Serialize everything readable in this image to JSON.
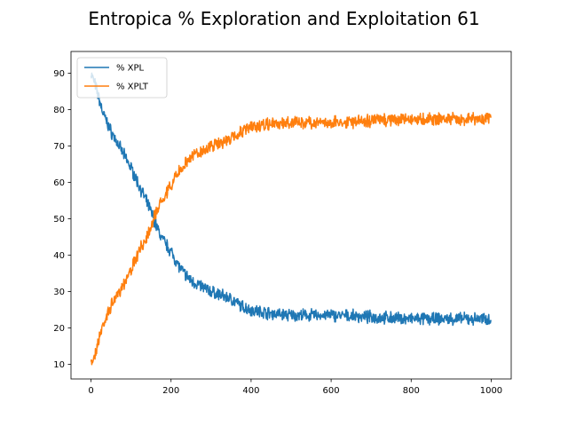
{
  "chart_data": {
    "type": "line",
    "title": "Entropica % Exploration and Exploitation 61",
    "xlabel": "",
    "ylabel": "",
    "xlim": [
      -50,
      1050
    ],
    "ylim": [
      6,
      96
    ],
    "xticks": [
      0,
      200,
      400,
      600,
      800,
      1000
    ],
    "yticks": [
      10,
      20,
      30,
      40,
      50,
      60,
      70,
      80,
      90
    ],
    "grid": false,
    "legend_position": "top-left",
    "series": [
      {
        "name": "% XPL",
        "color": "#1f77b4",
        "x": [
          0,
          10,
          20,
          30,
          50,
          75,
          100,
          125,
          150,
          160,
          175,
          200,
          225,
          250,
          300,
          350,
          375,
          400,
          450,
          500,
          600,
          700,
          800,
          900,
          1000
        ],
        "y": [
          90,
          87,
          83,
          79,
          74,
          69,
          64,
          58,
          52,
          49,
          45,
          41,
          36,
          33,
          30,
          28,
          26,
          25,
          24,
          23.5,
          23.5,
          23,
          22.5,
          22.5,
          22.5
        ]
      },
      {
        "name": "% XPLT",
        "color": "#ff7f0e",
        "x": [
          0,
          10,
          20,
          30,
          50,
          75,
          100,
          125,
          150,
          160,
          175,
          200,
          225,
          250,
          300,
          350,
          375,
          400,
          450,
          500,
          600,
          700,
          800,
          900,
          1000
        ],
        "y": [
          10,
          13,
          17,
          21,
          26,
          31,
          36,
          42,
          48,
          51,
          55,
          59,
          64,
          67,
          70,
          72,
          74,
          75,
          76,
          76.5,
          76.5,
          77,
          77.5,
          77.5,
          77.5
        ]
      }
    ]
  }
}
